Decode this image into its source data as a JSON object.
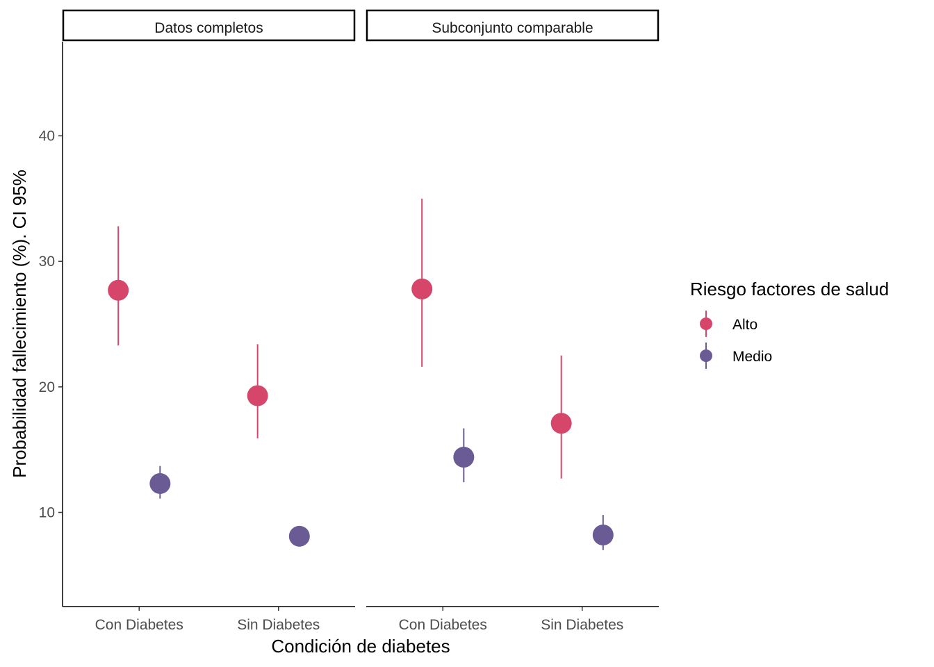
{
  "chart_data": {
    "type": "scatter",
    "subtype": "pointrange",
    "ylabel": "Probabilidad fallecimiento (%). CI 95%",
    "xlabel": "Condición de diabetes",
    "ylim": [
      2.5,
      47.5
    ],
    "yticks": [
      10,
      20,
      30,
      40
    ],
    "categories": [
      "Con Diabetes",
      "Sin Diabetes"
    ],
    "legend": {
      "title": "Riesgo factores de salud",
      "position": "right",
      "entries": [
        "Alto",
        "Medio"
      ]
    },
    "colors": {
      "Alto": "#d6456a",
      "Medio": "#6b5b95"
    },
    "panels": [
      {
        "name": "Datos completos",
        "series": [
          {
            "name": "Alto",
            "points": [
              {
                "category": "Con Diabetes",
                "y": 27.7,
                "low": 23.3,
                "high": 32.8
              },
              {
                "category": "Sin Diabetes",
                "y": 19.3,
                "low": 15.9,
                "high": 23.4
              }
            ]
          },
          {
            "name": "Medio",
            "points": [
              {
                "category": "Con Diabetes",
                "y": 12.3,
                "low": 11.1,
                "high": 13.7
              },
              {
                "category": "Sin Diabetes",
                "y": 8.1,
                "low": 7.3,
                "high": 8.9
              }
            ]
          }
        ]
      },
      {
        "name": "Subconjunto comparable",
        "series": [
          {
            "name": "Alto",
            "points": [
              {
                "category": "Con Diabetes",
                "y": 27.8,
                "low": 21.6,
                "high": 35.0
              },
              {
                "category": "Sin Diabetes",
                "y": 17.1,
                "low": 12.7,
                "high": 22.5
              }
            ]
          },
          {
            "name": "Medio",
            "points": [
              {
                "category": "Con Diabetes",
                "y": 14.4,
                "low": 12.4,
                "high": 16.7
              },
              {
                "category": "Sin Diabetes",
                "y": 8.2,
                "low": 7.0,
                "high": 9.8
              }
            ]
          }
        ]
      }
    ]
  }
}
